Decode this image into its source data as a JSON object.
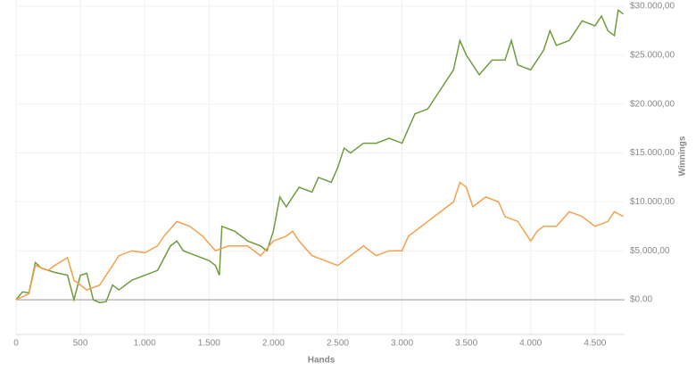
{
  "chart_data": {
    "type": "line",
    "x_label": "Hands",
    "y_label": "Winnings",
    "xlim": [
      0,
      4730
    ],
    "ylim": [
      -3550,
      30640
    ],
    "xticks": [
      0,
      500,
      {
        "value": 1000,
        "label": "1.000"
      },
      {
        "value": 1500,
        "label": "1.500"
      },
      {
        "value": 2000,
        "label": "2.000"
      },
      {
        "value": 2500,
        "label": "2.500"
      },
      {
        "value": 3000,
        "label": "3.000"
      },
      {
        "value": 3500,
        "label": "3.500"
      },
      {
        "value": 4000,
        "label": "4.000"
      },
      {
        "value": 4500,
        "label": "4.500"
      }
    ],
    "yticks": [
      {
        "value": 0,
        "label": "$0.00"
      },
      {
        "value": 5000,
        "label": "$5.000,00"
      },
      {
        "value": 10000,
        "label": "$10.000,00"
      },
      {
        "value": 15000,
        "label": "$15.000,00"
      },
      {
        "value": 20000,
        "label": "$20.000,00"
      },
      {
        "value": 25000,
        "label": "$25.000,00"
      },
      {
        "value": 30000,
        "label": "$30.000,00"
      }
    ],
    "grid": true,
    "series": [
      {
        "color": "#6f9c3d",
        "x": [
          0,
          50,
          100,
          150,
          200,
          300,
          400,
          450,
          500,
          550,
          600,
          650,
          700,
          750,
          800,
          900,
          1000,
          1100,
          1200,
          1250,
          1300,
          1400,
          1500,
          1550,
          1580,
          1600,
          1700,
          1800,
          1900,
          1950,
          2000,
          2050,
          2100,
          2200,
          2300,
          2350,
          2450,
          2500,
          2550,
          2600,
          2700,
          2800,
          2900,
          3000,
          3100,
          3200,
          3300,
          3400,
          3450,
          3500,
          3600,
          3700,
          3800,
          3850,
          3900,
          4000,
          4100,
          4150,
          4200,
          4300,
          4400,
          4500,
          4550,
          4600,
          4650,
          4680,
          4720
        ],
        "values": [
          0,
          800,
          700,
          3800,
          3200,
          2800,
          2500,
          0,
          2500,
          2700,
          0,
          -300,
          -200,
          1500,
          1000,
          2000,
          2500,
          3000,
          5500,
          6000,
          5000,
          4500,
          4000,
          3500,
          2500,
          7500,
          7000,
          6000,
          5500,
          5000,
          7000,
          10500,
          9500,
          11500,
          11000,
          12500,
          12000,
          13500,
          15500,
          15000,
          16000,
          16000,
          16500,
          16000,
          19000,
          19500,
          21500,
          23500,
          26500,
          25000,
          23000,
          24500,
          24500,
          26500,
          24000,
          23500,
          25500,
          27500,
          26000,
          26500,
          28500,
          28000,
          29000,
          27500,
          27000,
          29600,
          29200
        ]
      },
      {
        "color": "#f5a04c",
        "x": [
          0,
          100,
          150,
          250,
          300,
          400,
          450,
          500,
          550,
          650,
          700,
          750,
          800,
          900,
          1000,
          1100,
          1150,
          1250,
          1350,
          1450,
          1550,
          1650,
          1800,
          1900,
          2000,
          2100,
          2150,
          2200,
          2300,
          2400,
          2500,
          2600,
          2700,
          2800,
          2900,
          3000,
          3050,
          3100,
          3200,
          3300,
          3400,
          3450,
          3500,
          3550,
          3650,
          3750,
          3800,
          3900,
          4000,
          4050,
          4100,
          4200,
          4300,
          4400,
          4500,
          4600,
          4650,
          4720
        ],
        "values": [
          0,
          600,
          3500,
          3000,
          3500,
          4300,
          2000,
          1500,
          1000,
          1500,
          2500,
          3500,
          4500,
          5000,
          4800,
          5500,
          6500,
          8000,
          7500,
          6500,
          5000,
          5500,
          5500,
          4500,
          6000,
          6500,
          7000,
          6000,
          4500,
          4000,
          3500,
          4500,
          5500,
          4500,
          5000,
          5000,
          6500,
          7000,
          8000,
          9000,
          10000,
          12000,
          11500,
          9500,
          10500,
          10000,
          8500,
          8000,
          6000,
          7000,
          7500,
          7500,
          9000,
          8500,
          7500,
          8000,
          9000,
          8500
        ]
      }
    ]
  }
}
